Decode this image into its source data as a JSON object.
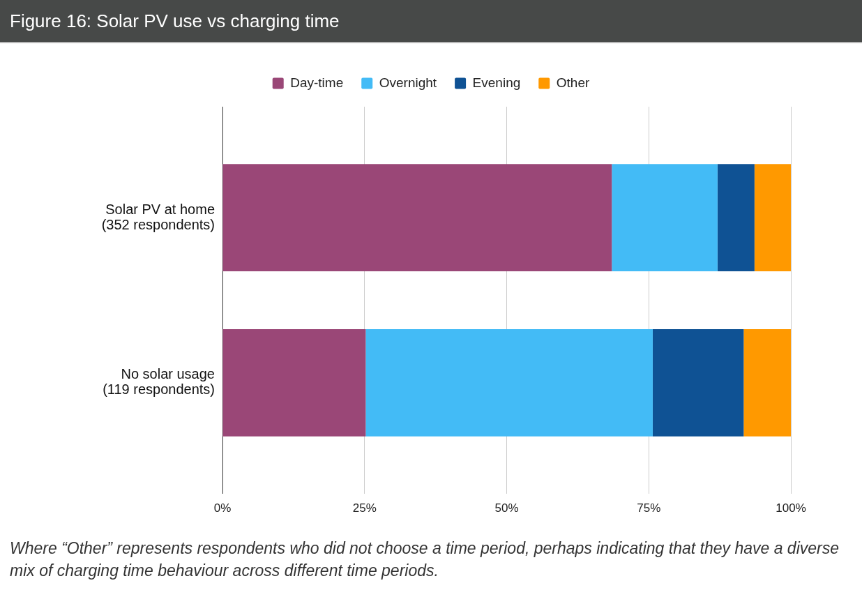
{
  "chart_data": {
    "type": "bar",
    "title": "Figure 16: Solar PV use vs charging time",
    "orientation": "horizontal",
    "stacked": true,
    "categories": [
      "Solar PV at home\n(352 respondents)",
      "No solar usage\n(119 respondents)"
    ],
    "series": [
      {
        "name": "Day-time",
        "color": "#9a4777",
        "values": [
          68.5,
          25.2
        ]
      },
      {
        "name": "Overnight",
        "color": "#43bbf6",
        "values": [
          18.6,
          50.5
        ]
      },
      {
        "name": "Evening",
        "color": "#0f5294",
        "values": [
          6.5,
          16.0
        ]
      },
      {
        "name": "Other",
        "color": "#ff9900",
        "values": [
          6.4,
          8.3
        ]
      }
    ],
    "xlim": [
      0,
      100
    ],
    "xticks": [
      {
        "value": 0,
        "label": "0%"
      },
      {
        "value": 25,
        "label": "25%"
      },
      {
        "value": 50,
        "label": "50%"
      },
      {
        "value": 75,
        "label": "75%"
      },
      {
        "value": 100,
        "label": "100%"
      }
    ],
    "grid": "x",
    "legend": "top",
    "annotations": [
      "Where “Other” represents respondents who did not choose a time period, perhaps indicating that they have a diverse mix of charging time behaviour across different time periods."
    ]
  }
}
